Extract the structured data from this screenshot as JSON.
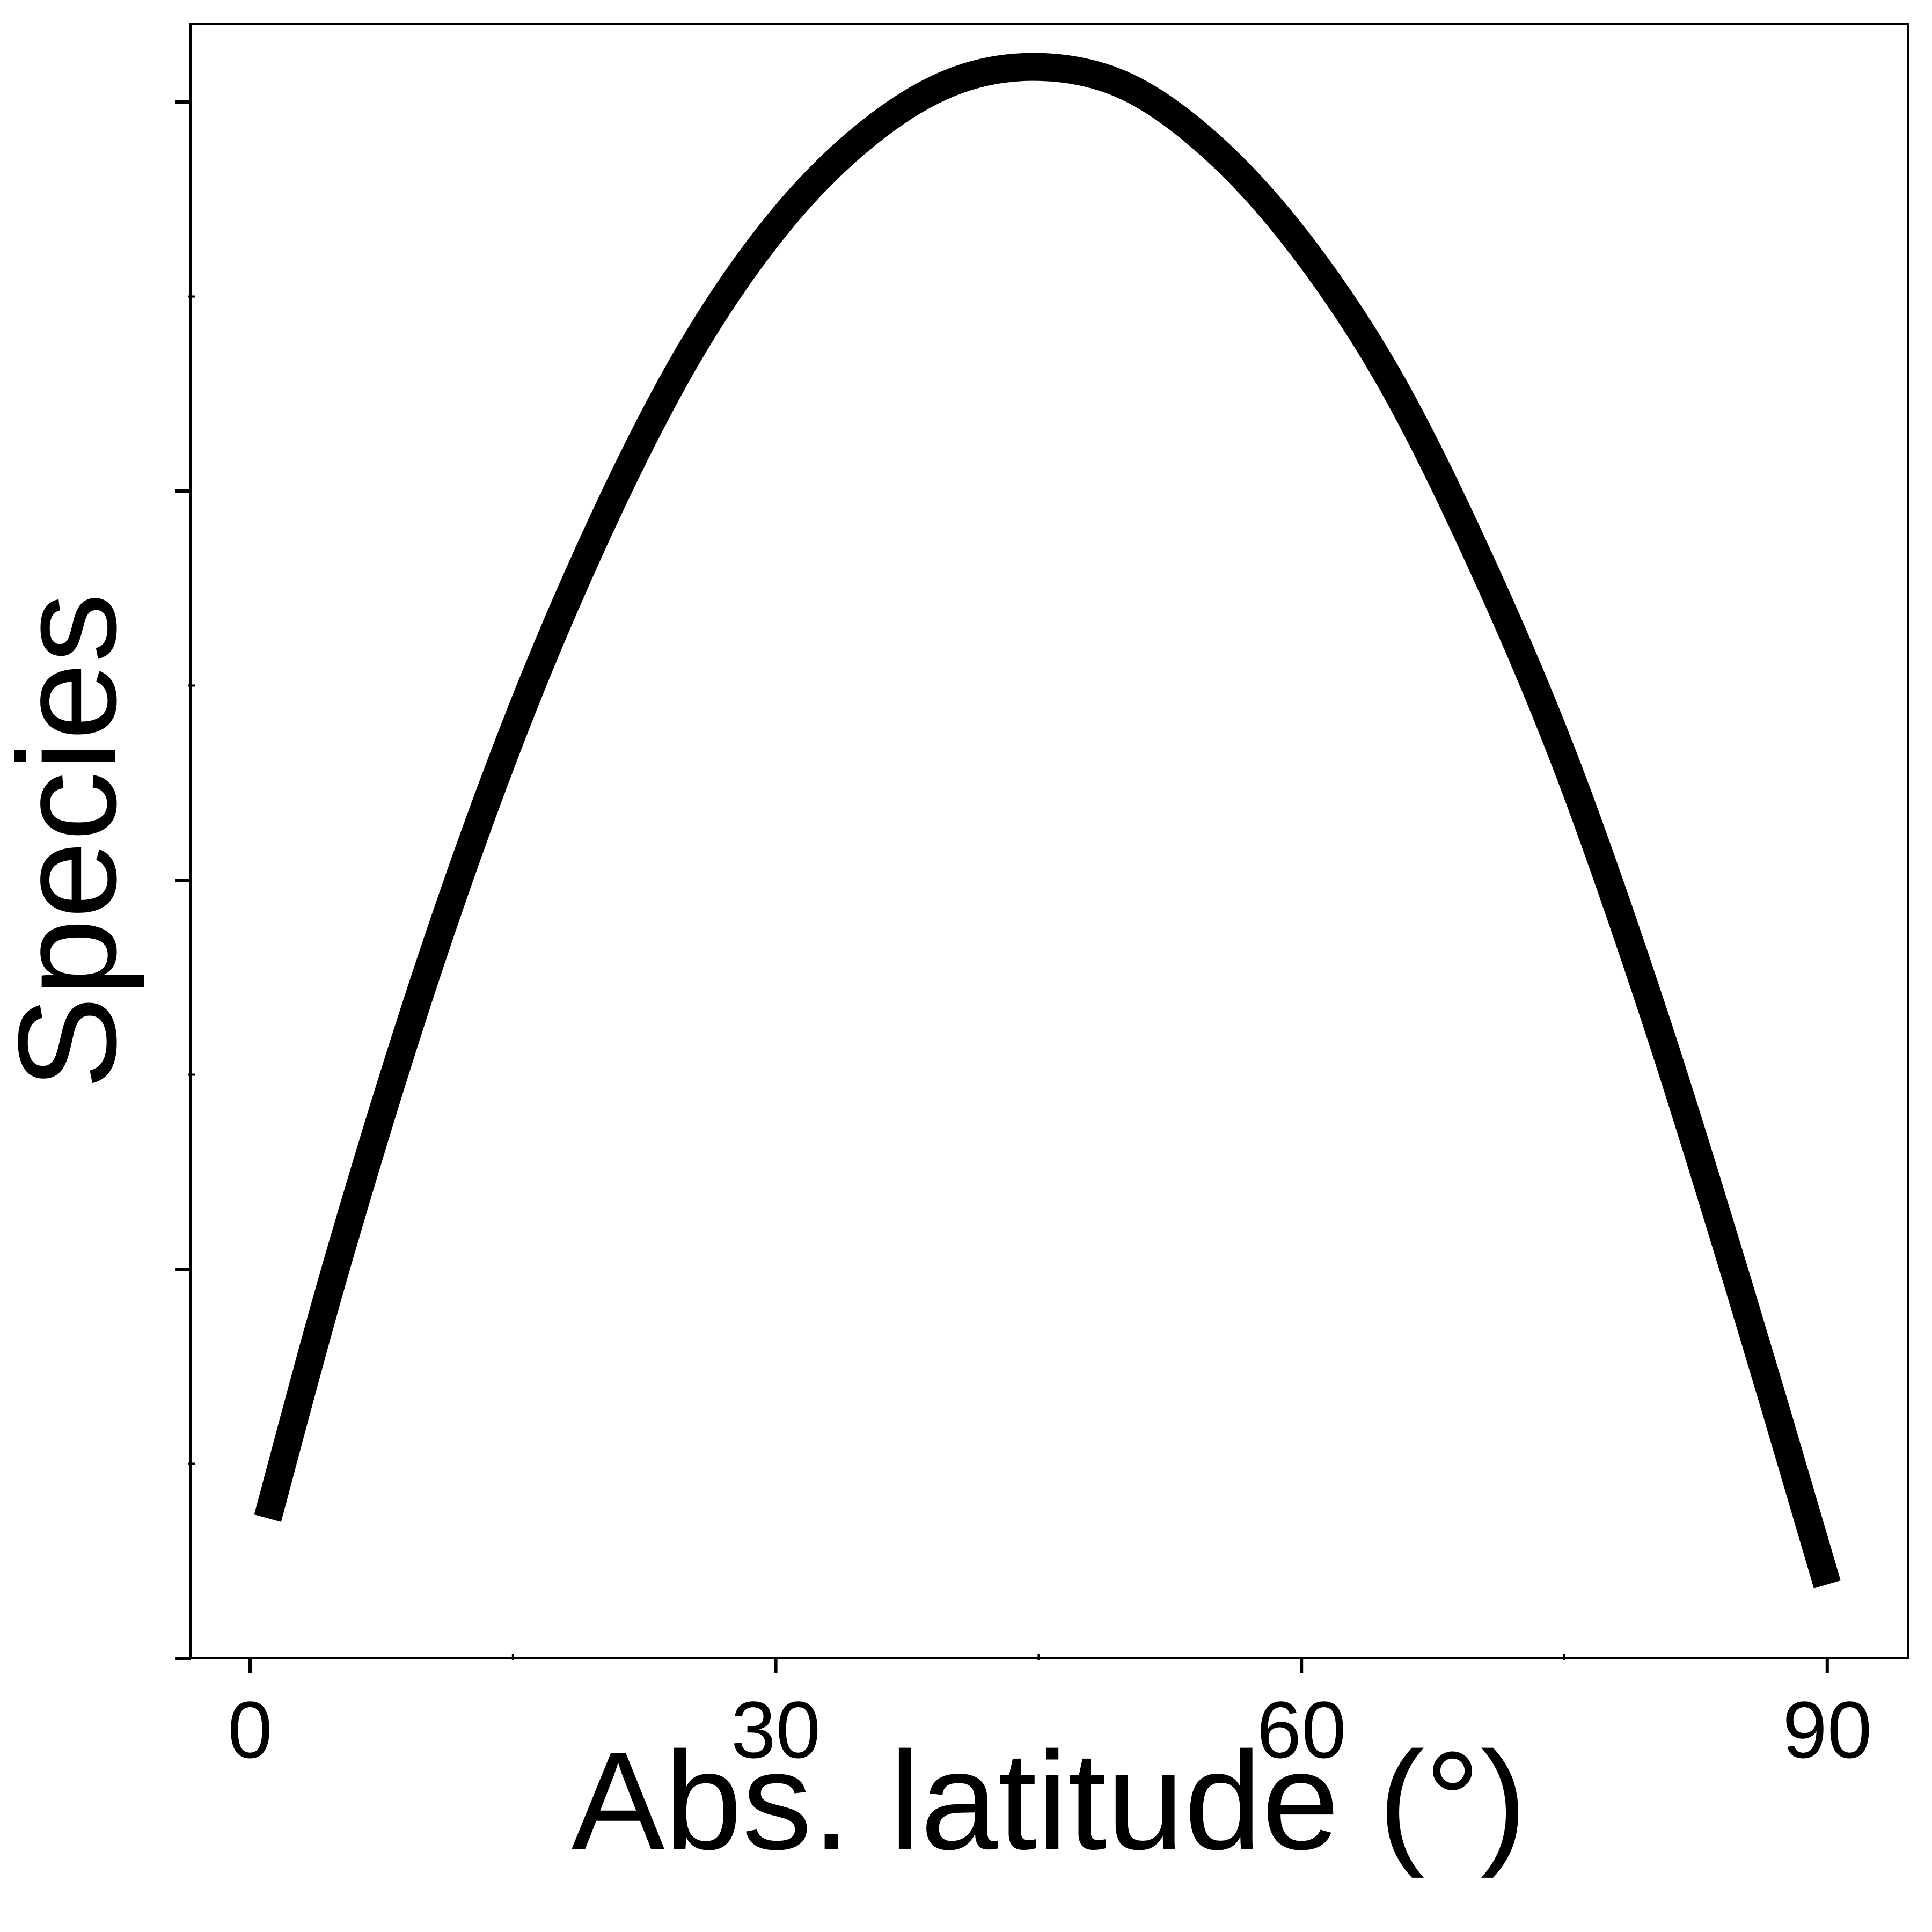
{
  "chart_data": {
    "type": "line",
    "title": "",
    "xlabel": "Abs. latitude (°)",
    "ylabel": "Species",
    "xlim": [
      -3.4,
      94.6
    ],
    "ylim": [
      0,
      4.2
    ],
    "x_ticks": [
      {
        "value": 0,
        "label": "0"
      },
      {
        "value": 30,
        "label": "30"
      },
      {
        "value": 60,
        "label": "60"
      },
      {
        "value": 90,
        "label": "90"
      }
    ],
    "x_minor_ticks": [
      15,
      45,
      75
    ],
    "y_ticks": [
      0,
      1,
      2,
      3,
      4
    ],
    "y_minor_ticks": [
      0.5,
      1.5,
      2.5,
      3.5
    ],
    "y_tick_labels_shown": false,
    "grid": false,
    "line_color": "#000000",
    "series": [
      {
        "x": [
          1,
          5,
          10,
          15,
          20,
          25,
          30,
          35,
          40,
          45,
          50,
          55,
          60,
          65,
          70,
          75,
          80,
          85,
          90
        ],
        "y": [
          0.36,
          1.02,
          1.75,
          2.38,
          2.91,
          3.35,
          3.68,
          3.91,
          4.05,
          4.09,
          4.04,
          3.88,
          3.63,
          3.29,
          2.84,
          2.31,
          1.67,
          0.95,
          0.19
        ]
      }
    ]
  }
}
